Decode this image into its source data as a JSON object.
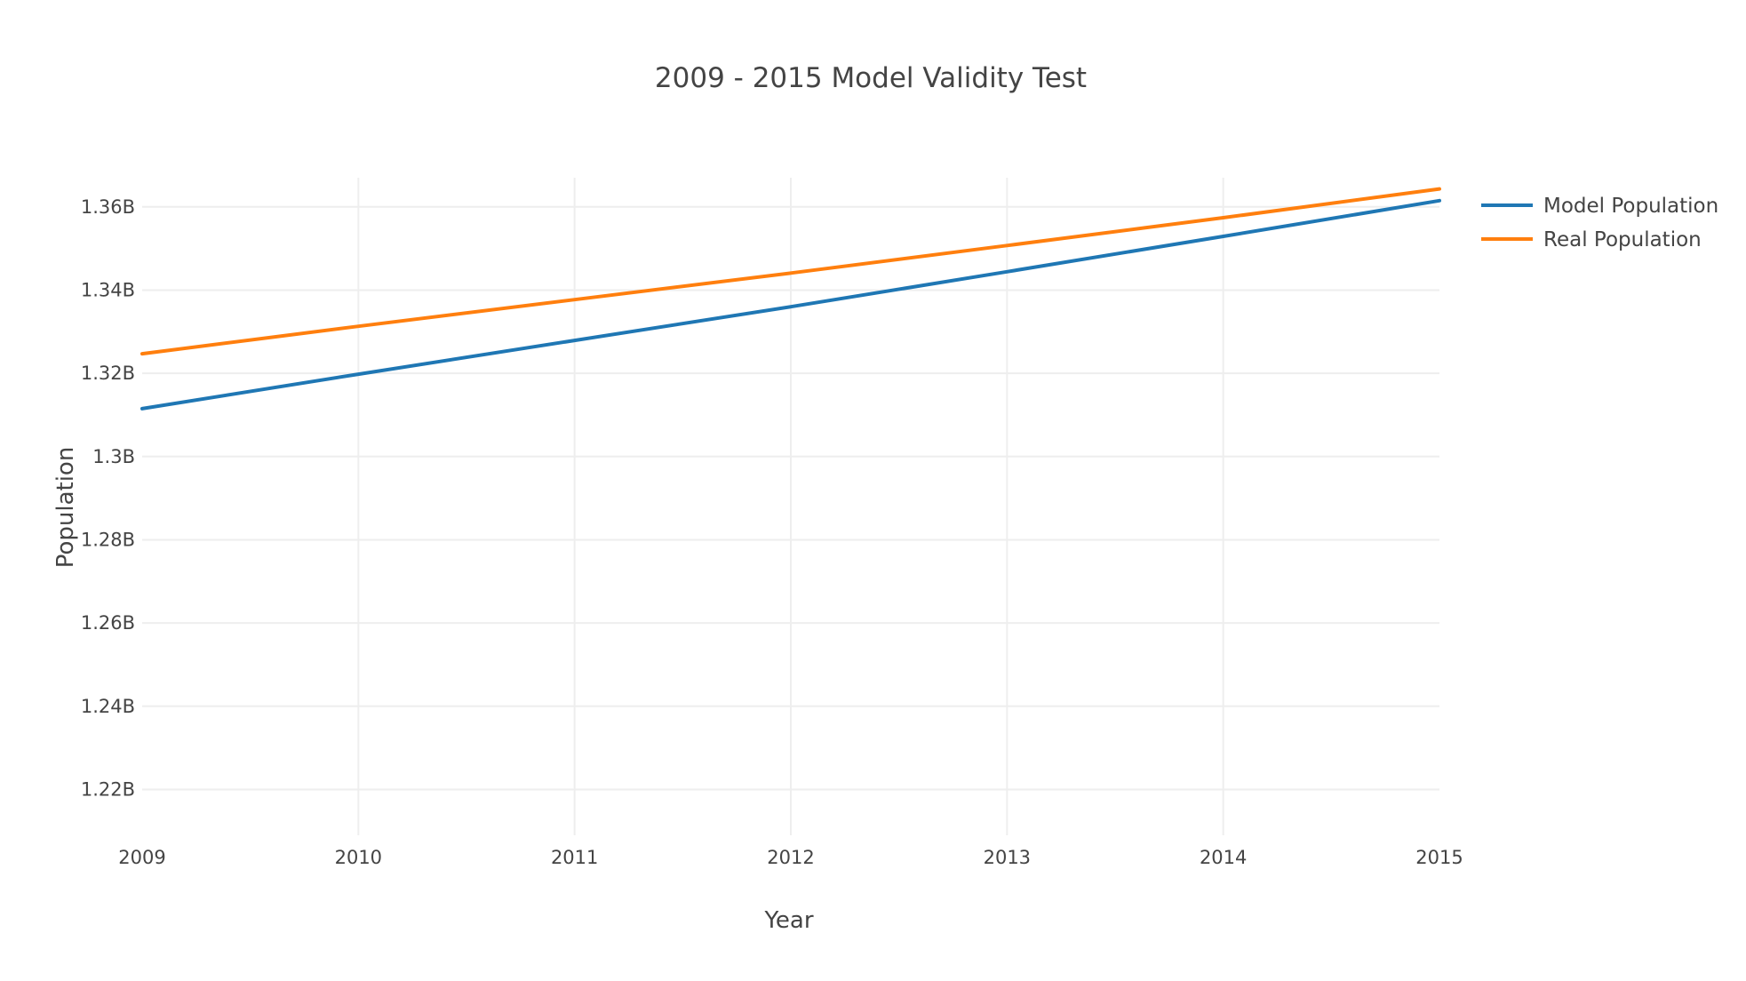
{
  "chart_data": {
    "type": "line",
    "title": "2009 - 2015 Model Validity Test",
    "xlabel": "Year",
    "ylabel": "Population",
    "x": [
      2009,
      2010,
      2011,
      2012,
      2013,
      2014,
      2015
    ],
    "x_tick_labels": [
      "2009",
      "2010",
      "2011",
      "2012",
      "2013",
      "2014",
      "2015"
    ],
    "xlim": [
      2009,
      2015
    ],
    "y_ticks": [
      1220000000,
      1240000000,
      1260000000,
      1280000000,
      1300000000,
      1320000000,
      1340000000,
      1360000000
    ],
    "y_tick_labels": [
      "1.22B",
      "1.24B",
      "1.26B",
      "1.28B",
      "1.3B",
      "1.32B",
      "1.34B",
      "1.36B"
    ],
    "ylim": [
      1209000000,
      1367000000
    ],
    "grid": true,
    "legend_position": "top-right",
    "series": [
      {
        "name": "Model Population",
        "color": "#1f77b4",
        "values": [
          1311500000,
          1319800000,
          1327900000,
          1336000000,
          1344400000,
          1352900000,
          1361500000
        ]
      },
      {
        "name": "Real Population",
        "color": "#ff7f0e",
        "values": [
          1324700000,
          1331300000,
          1337700000,
          1344100000,
          1350700000,
          1357400000,
          1364300000
        ]
      }
    ]
  }
}
